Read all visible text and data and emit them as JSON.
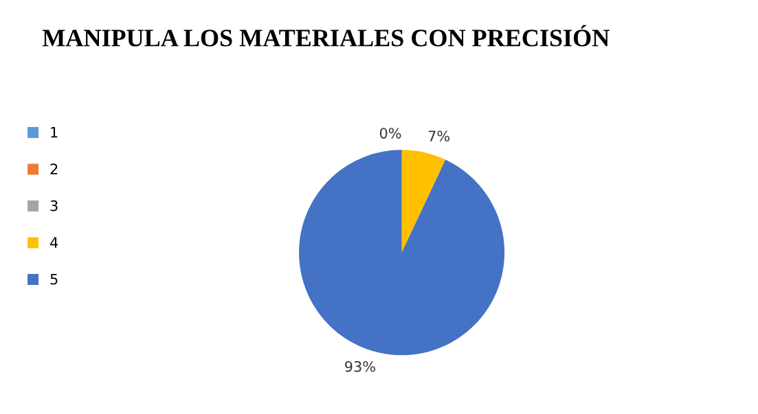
{
  "chart_data": {
    "type": "pie",
    "title": "MANIPULA LOS MATERIALES CON PRECISIÓN",
    "categories": [
      "1",
      "2",
      "3",
      "4",
      "5"
    ],
    "values": [
      0,
      0,
      0,
      7,
      93
    ],
    "colors": [
      "#5b9bd5",
      "#ed7d31",
      "#a5a5a5",
      "#ffc000",
      "#4472c4"
    ],
    "value_labels": [
      null,
      null,
      "0%",
      "7%",
      "93%"
    ],
    "legend": "left"
  }
}
